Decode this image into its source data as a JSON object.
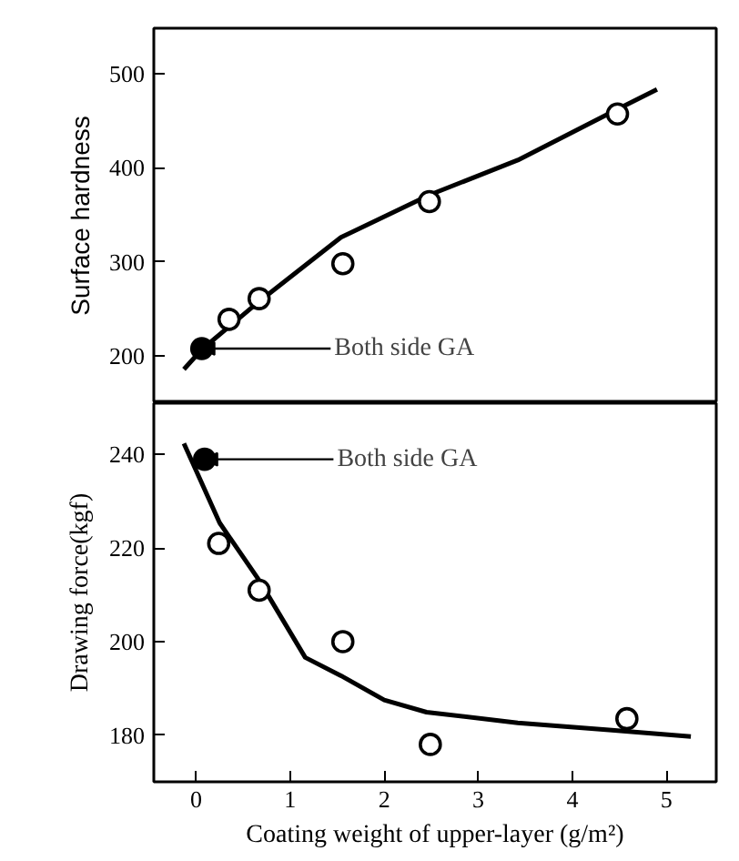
{
  "chart_data": [
    {
      "type": "scatter",
      "ylabel": "Surface hardness",
      "xlim": [
        -0.45,
        5.53
      ],
      "ylim": [
        150,
        548
      ],
      "yticks": [
        200,
        300,
        400,
        500
      ],
      "tick_labels": "y",
      "grid": false,
      "annotations": [
        {
          "text": "Both side GA",
          "x": 0.06,
          "y": 208
        }
      ],
      "series": [
        {
          "type": "line",
          "color": "#000000",
          "x": [
            -0.13,
            0.06,
            0.67,
            1.54,
            2.48,
            3.42,
            4.48,
            4.9
          ],
          "values": [
            186,
            207,
            258,
            326,
            371,
            408,
            462,
            483
          ]
        },
        {
          "type": "scatter",
          "marker": "circle",
          "color": "#ffffff",
          "x": [
            0.35,
            0.67,
            1.56,
            2.48,
            4.48
          ],
          "values": [
            239,
            261,
            298,
            364,
            457
          ]
        },
        {
          "type": "scatter",
          "marker": "circle",
          "color": "#000000",
          "x": [
            0.06
          ],
          "values": [
            208
          ]
        }
      ]
    },
    {
      "type": "scatter",
      "xlabel": "Coating weight of upper-layer (g/m²)",
      "ylabel": "Drawing force(kgf)",
      "xlim": [
        -0.45,
        5.53
      ],
      "ylim": [
        170,
        251
      ],
      "xticks": [
        0,
        1,
        2,
        3,
        4,
        5
      ],
      "yticks": [
        180,
        200,
        220,
        240
      ],
      "grid": false,
      "annotations": [
        {
          "text": "Both side GA",
          "x": 0.09,
          "y": 239
        }
      ],
      "series": [
        {
          "type": "line",
          "color": "#000000",
          "x": [
            -0.13,
            0.25,
            0.67,
            1.16,
            1.54,
            2.0,
            2.45,
            3.42,
            4.39,
            5.26
          ],
          "values": [
            242.4,
            225.4,
            213.1,
            196.6,
            192.7,
            187.5,
            184.9,
            182.6,
            181.1,
            179.7
          ]
        },
        {
          "type": "scatter",
          "marker": "circle",
          "color": "#ffffff",
          "x": [
            0.24,
            0.67,
            1.56,
            2.49,
            4.58
          ],
          "values": [
            221,
            211,
            200,
            178,
            183.5
          ]
        },
        {
          "type": "scatter",
          "marker": "circle",
          "color": "#000000",
          "x": [
            0.09
          ],
          "values": [
            239
          ]
        }
      ]
    }
  ]
}
